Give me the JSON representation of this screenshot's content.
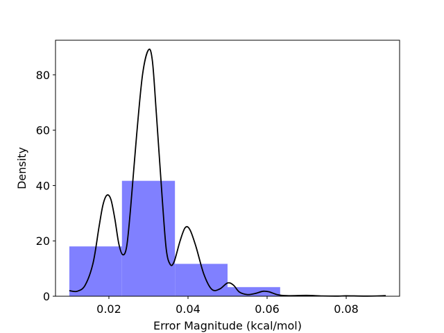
{
  "chart_data": {
    "type": "bar",
    "title": "",
    "xlabel": "Error Magnitude (kcal/mol)",
    "ylabel": "Density",
    "xlim": [
      0.0065,
      0.0935
    ],
    "ylim": [
      0,
      92.5
    ],
    "grid": false,
    "legend": "none",
    "x_ticks": [
      {
        "value": 0.02,
        "label": "0.02"
      },
      {
        "value": 0.04,
        "label": "0.04"
      },
      {
        "value": 0.06,
        "label": "0.06"
      },
      {
        "value": 0.08,
        "label": "0.08"
      }
    ],
    "y_ticks": [
      {
        "value": 0,
        "label": "0"
      },
      {
        "value": 20,
        "label": "20"
      },
      {
        "value": 40,
        "label": "40"
      },
      {
        "value": 60,
        "label": "60"
      },
      {
        "value": 80,
        "label": "80"
      }
    ],
    "histogram": {
      "color": "#8080ff",
      "bins": [
        {
          "x0": 0.01,
          "x1": 0.0233,
          "density": 18.0
        },
        {
          "x0": 0.0233,
          "x1": 0.0367,
          "density": 41.7
        },
        {
          "x0": 0.0367,
          "x1": 0.05,
          "density": 11.7
        },
        {
          "x0": 0.05,
          "x1": 0.0633,
          "density": 3.3
        },
        {
          "x0": 0.0633,
          "x1": 0.0767,
          "density": 0.0
        },
        {
          "x0": 0.0767,
          "x1": 0.09,
          "density": 0.0
        }
      ]
    },
    "kde": {
      "color": "#000000",
      "points": [
        [
          0.01,
          2.0
        ],
        [
          0.012,
          1.8
        ],
        [
          0.014,
          4.0
        ],
        [
          0.016,
          12.0
        ],
        [
          0.0175,
          25.0
        ],
        [
          0.0185,
          33.0
        ],
        [
          0.0195,
          36.5
        ],
        [
          0.0205,
          35.0
        ],
        [
          0.0215,
          28.0
        ],
        [
          0.0225,
          19.0
        ],
        [
          0.0235,
          15.0
        ],
        [
          0.0245,
          18.0
        ],
        [
          0.0255,
          32.0
        ],
        [
          0.027,
          58.0
        ],
        [
          0.0285,
          80.0
        ],
        [
          0.03,
          89.0
        ],
        [
          0.031,
          85.0
        ],
        [
          0.032,
          66.0
        ],
        [
          0.0335,
          35.0
        ],
        [
          0.0345,
          17.0
        ],
        [
          0.0355,
          11.5
        ],
        [
          0.0365,
          12.5
        ],
        [
          0.038,
          20.0
        ],
        [
          0.0393,
          24.8
        ],
        [
          0.0405,
          24.0
        ],
        [
          0.042,
          18.0
        ],
        [
          0.044,
          8.0
        ],
        [
          0.046,
          2.5
        ],
        [
          0.048,
          2.6
        ],
        [
          0.05,
          4.8
        ],
        [
          0.0515,
          4.0
        ],
        [
          0.053,
          1.5
        ],
        [
          0.055,
          0.6
        ],
        [
          0.057,
          1.0
        ],
        [
          0.059,
          1.8
        ],
        [
          0.0605,
          1.6
        ],
        [
          0.0625,
          0.6
        ],
        [
          0.065,
          0.2
        ],
        [
          0.07,
          0.3
        ],
        [
          0.074,
          0.1
        ],
        [
          0.078,
          0.05
        ],
        [
          0.08,
          0.15
        ],
        [
          0.085,
          0.05
        ],
        [
          0.09,
          0.2
        ]
      ]
    }
  }
}
